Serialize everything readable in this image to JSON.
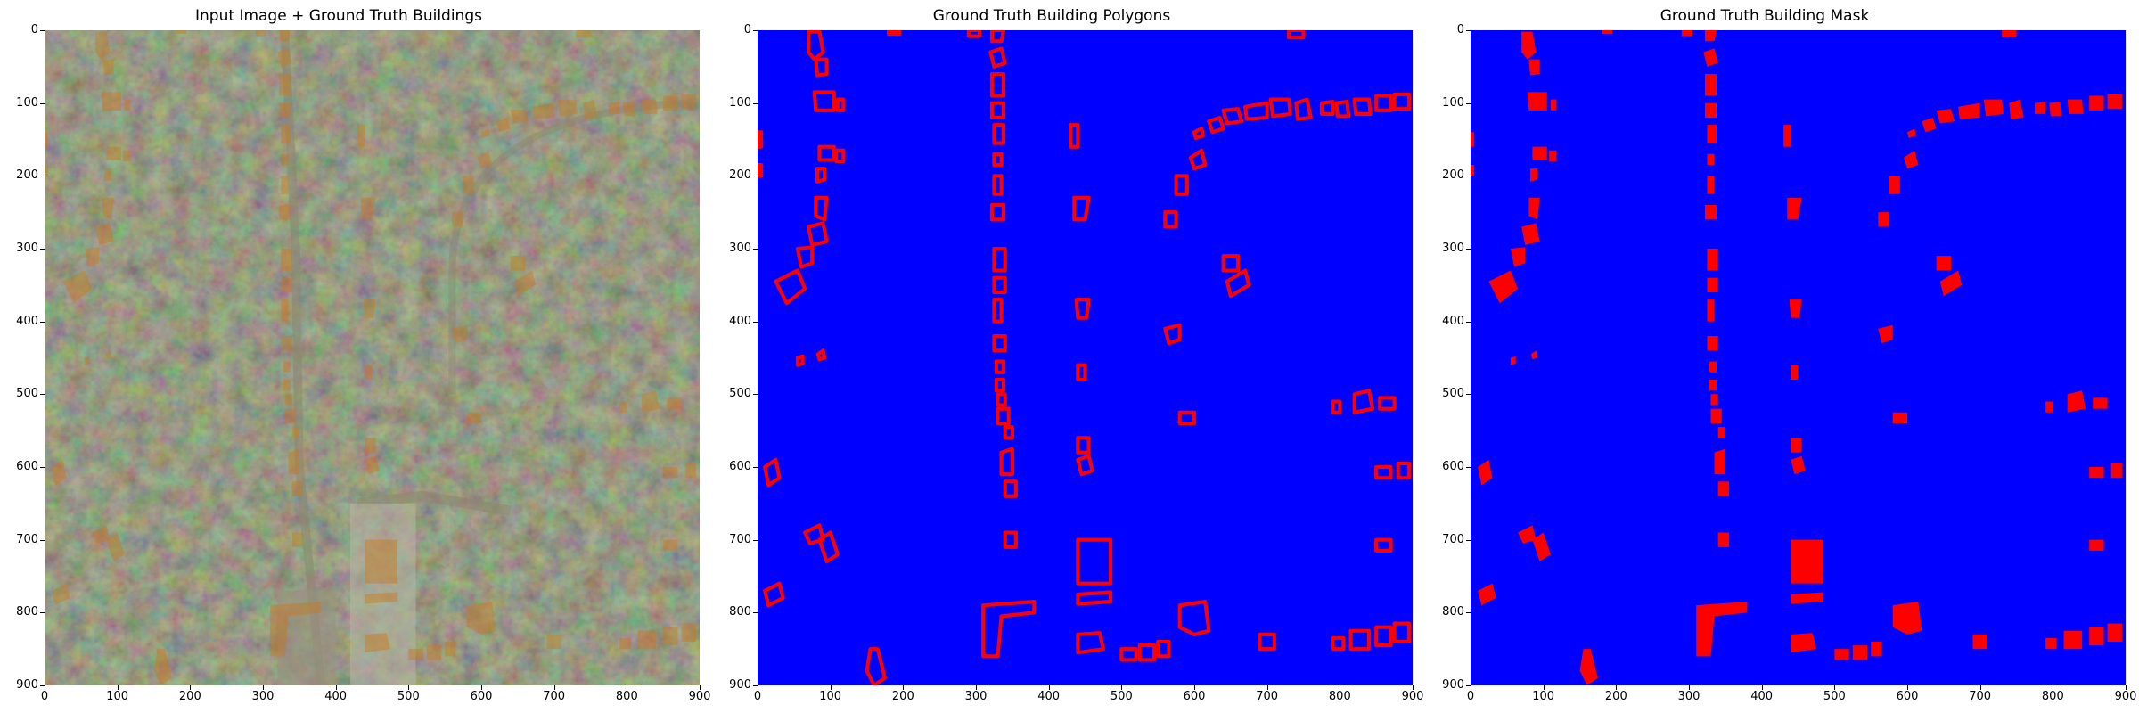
{
  "panels": [
    {
      "title": "Input Image + Ground Truth Buildings"
    },
    {
      "title": "Ground Truth Building Polygons"
    },
    {
      "title": "Ground Truth Building Mask"
    }
  ],
  "axes": {
    "x_ticks": [
      "0",
      "100",
      "200",
      "300",
      "400",
      "500",
      "600",
      "700",
      "800",
      "900"
    ],
    "y_ticks": [
      "0",
      "100",
      "200",
      "300",
      "400",
      "500",
      "600",
      "700",
      "800",
      "900"
    ],
    "xlim": [
      0,
      900
    ],
    "ylim": [
      900,
      0
    ]
  },
  "colors": {
    "background_blue": "#0000ff",
    "building_red": "#ff0000",
    "overlay_orange": "#c8781e",
    "aerial_base": "#2d3a26"
  },
  "buildings": [
    [
      [
        70,
        2
      ],
      [
        85,
        2
      ],
      [
        90,
        30
      ],
      [
        78,
        40
      ],
      [
        70,
        30
      ]
    ],
    [
      [
        80,
        40
      ],
      [
        95,
        40
      ],
      [
        95,
        60
      ],
      [
        82,
        62
      ]
    ],
    [
      [
        78,
        85
      ],
      [
        105,
        85
      ],
      [
        105,
        110
      ],
      [
        80,
        110
      ]
    ],
    [
      [
        110,
        95
      ],
      [
        118,
        95
      ],
      [
        118,
        110
      ],
      [
        110,
        110
      ]
    ],
    [
      [
        85,
        160
      ],
      [
        105,
        160
      ],
      [
        105,
        178
      ],
      [
        85,
        178
      ]
    ],
    [
      [
        108,
        165
      ],
      [
        118,
        165
      ],
      [
        118,
        180
      ],
      [
        108,
        180
      ]
    ],
    [
      [
        82,
        190
      ],
      [
        92,
        190
      ],
      [
        92,
        205
      ],
      [
        82,
        208
      ]
    ],
    [
      [
        80,
        230
      ],
      [
        95,
        230
      ],
      [
        92,
        260
      ],
      [
        80,
        255
      ]
    ],
    [
      [
        70,
        270
      ],
      [
        90,
        265
      ],
      [
        95,
        290
      ],
      [
        75,
        295
      ]
    ],
    [
      [
        55,
        300
      ],
      [
        75,
        298
      ],
      [
        75,
        320
      ],
      [
        60,
        325
      ]
    ],
    [
      [
        25,
        345
      ],
      [
        55,
        330
      ],
      [
        65,
        355
      ],
      [
        40,
        375
      ]
    ],
    [
      [
        0,
        140
      ],
      [
        5,
        140
      ],
      [
        5,
        160
      ],
      [
        0,
        160
      ]
    ],
    [
      [
        0,
        185
      ],
      [
        5,
        185
      ],
      [
        5,
        200
      ],
      [
        0,
        200
      ]
    ],
    [
      [
        10,
        600
      ],
      [
        25,
        590
      ],
      [
        30,
        615
      ],
      [
        15,
        625
      ]
    ],
    [
      [
        65,
        690
      ],
      [
        85,
        680
      ],
      [
        90,
        700
      ],
      [
        72,
        705
      ]
    ],
    [
      [
        85,
        700
      ],
      [
        100,
        690
      ],
      [
        110,
        720
      ],
      [
        95,
        730
      ]
    ],
    [
      [
        10,
        770
      ],
      [
        30,
        760
      ],
      [
        35,
        780
      ],
      [
        15,
        790
      ]
    ],
    [
      [
        55,
        450
      ],
      [
        62,
        448
      ],
      [
        62,
        458
      ],
      [
        55,
        460
      ]
    ],
    [
      [
        83,
        445
      ],
      [
        90,
        440
      ],
      [
        92,
        450
      ],
      [
        85,
        452
      ]
    ],
    [
      [
        155,
        850
      ],
      [
        165,
        850
      ],
      [
        175,
        890
      ],
      [
        160,
        900
      ],
      [
        150,
        880
      ]
    ],
    [
      [
        310,
        790
      ],
      [
        380,
        785
      ],
      [
        380,
        800
      ],
      [
        335,
        805
      ],
      [
        330,
        860
      ],
      [
        310,
        860
      ]
    ],
    [
      [
        322,
        0
      ],
      [
        338,
        0
      ],
      [
        335,
        15
      ],
      [
        322,
        15
      ]
    ],
    [
      [
        320,
        30
      ],
      [
        335,
        25
      ],
      [
        340,
        45
      ],
      [
        325,
        50
      ]
    ],
    [
      [
        322,
        60
      ],
      [
        338,
        60
      ],
      [
        338,
        90
      ],
      [
        322,
        90
      ]
    ],
    [
      [
        322,
        100
      ],
      [
        338,
        100
      ],
      [
        338,
        120
      ],
      [
        322,
        120
      ]
    ],
    [
      [
        325,
        130
      ],
      [
        338,
        130
      ],
      [
        338,
        155
      ],
      [
        325,
        155
      ]
    ],
    [
      [
        325,
        170
      ],
      [
        335,
        170
      ],
      [
        335,
        185
      ],
      [
        325,
        185
      ]
    ],
    [
      [
        325,
        200
      ],
      [
        335,
        200
      ],
      [
        335,
        225
      ],
      [
        325,
        225
      ]
    ],
    [
      [
        322,
        240
      ],
      [
        338,
        240
      ],
      [
        338,
        260
      ],
      [
        322,
        260
      ]
    ],
    [
      [
        325,
        300
      ],
      [
        340,
        300
      ],
      [
        340,
        330
      ],
      [
        325,
        330
      ]
    ],
    [
      [
        325,
        340
      ],
      [
        340,
        340
      ],
      [
        340,
        360
      ],
      [
        325,
        360
      ]
    ],
    [
      [
        325,
        370
      ],
      [
        335,
        370
      ],
      [
        335,
        400
      ],
      [
        325,
        400
      ]
    ],
    [
      [
        325,
        420
      ],
      [
        340,
        420
      ],
      [
        340,
        440
      ],
      [
        325,
        440
      ]
    ],
    [
      [
        328,
        455
      ],
      [
        338,
        455
      ],
      [
        338,
        470
      ],
      [
        328,
        470
      ]
    ],
    [
      [
        328,
        480
      ],
      [
        338,
        480
      ],
      [
        338,
        495
      ],
      [
        328,
        495
      ]
    ],
    [
      [
        330,
        500
      ],
      [
        340,
        500
      ],
      [
        340,
        515
      ],
      [
        330,
        515
      ]
    ],
    [
      [
        330,
        520
      ],
      [
        345,
        520
      ],
      [
        345,
        540
      ],
      [
        330,
        540
      ]
    ],
    [
      [
        340,
        545
      ],
      [
        350,
        545
      ],
      [
        350,
        560
      ],
      [
        340,
        560
      ]
    ],
    [
      [
        335,
        580
      ],
      [
        350,
        575
      ],
      [
        350,
        610
      ],
      [
        335,
        610
      ]
    ],
    [
      [
        340,
        620
      ],
      [
        355,
        620
      ],
      [
        355,
        640
      ],
      [
        340,
        640
      ]
    ],
    [
      [
        340,
        690
      ],
      [
        355,
        690
      ],
      [
        355,
        710
      ],
      [
        340,
        710
      ]
    ],
    [
      [
        430,
        130
      ],
      [
        440,
        130
      ],
      [
        440,
        160
      ],
      [
        430,
        160
      ]
    ],
    [
      [
        435,
        230
      ],
      [
        455,
        230
      ],
      [
        450,
        260
      ],
      [
        435,
        260
      ]
    ],
    [
      [
        438,
        370
      ],
      [
        455,
        370
      ],
      [
        452,
        395
      ],
      [
        440,
        395
      ]
    ],
    [
      [
        440,
        460
      ],
      [
        450,
        460
      ],
      [
        450,
        480
      ],
      [
        440,
        480
      ]
    ],
    [
      [
        440,
        560
      ],
      [
        455,
        560
      ],
      [
        455,
        580
      ],
      [
        440,
        580
      ]
    ],
    [
      [
        440,
        590
      ],
      [
        455,
        585
      ],
      [
        460,
        605
      ],
      [
        445,
        610
      ]
    ],
    [
      [
        440,
        700
      ],
      [
        485,
        700
      ],
      [
        485,
        760
      ],
      [
        440,
        760
      ]
    ],
    [
      [
        440,
        775
      ],
      [
        485,
        772
      ],
      [
        485,
        785
      ],
      [
        440,
        788
      ]
    ],
    [
      [
        440,
        830
      ],
      [
        470,
        828
      ],
      [
        475,
        850
      ],
      [
        440,
        855
      ]
    ],
    [
      [
        500,
        850
      ],
      [
        520,
        850
      ],
      [
        520,
        865
      ],
      [
        500,
        865
      ]
    ],
    [
      [
        525,
        845
      ],
      [
        545,
        845
      ],
      [
        545,
        865
      ],
      [
        525,
        865
      ]
    ],
    [
      [
        550,
        840
      ],
      [
        565,
        840
      ],
      [
        565,
        860
      ],
      [
        550,
        860
      ]
    ],
    [
      [
        560,
        410
      ],
      [
        580,
        405
      ],
      [
        580,
        425
      ],
      [
        565,
        430
      ]
    ],
    [
      [
        580,
        525
      ],
      [
        600,
        525
      ],
      [
        600,
        540
      ],
      [
        580,
        540
      ]
    ],
    [
      [
        580,
        790
      ],
      [
        615,
        785
      ],
      [
        620,
        825
      ],
      [
        600,
        830
      ],
      [
        580,
        820
      ]
    ],
    [
      [
        595,
        175
      ],
      [
        610,
        165
      ],
      [
        615,
        185
      ],
      [
        600,
        190
      ]
    ],
    [
      [
        575,
        200
      ],
      [
        590,
        200
      ],
      [
        590,
        225
      ],
      [
        575,
        225
      ]
    ],
    [
      [
        560,
        250
      ],
      [
        575,
        250
      ],
      [
        575,
        270
      ],
      [
        560,
        270
      ]
    ],
    [
      [
        600,
        140
      ],
      [
        610,
        135
      ],
      [
        612,
        145
      ],
      [
        602,
        148
      ]
    ],
    [
      [
        620,
        125
      ],
      [
        635,
        120
      ],
      [
        640,
        135
      ],
      [
        625,
        140
      ]
    ],
    [
      [
        640,
        110
      ],
      [
        660,
        108
      ],
      [
        665,
        125
      ],
      [
        645,
        128
      ]
    ],
    [
      [
        670,
        105
      ],
      [
        700,
        100
      ],
      [
        700,
        120
      ],
      [
        672,
        122
      ]
    ],
    [
      [
        705,
        95
      ],
      [
        730,
        95
      ],
      [
        732,
        115
      ],
      [
        708,
        118
      ]
    ],
    [
      [
        740,
        100
      ],
      [
        755,
        95
      ],
      [
        760,
        120
      ],
      [
        742,
        122
      ]
    ],
    [
      [
        775,
        100
      ],
      [
        790,
        98
      ],
      [
        790,
        115
      ],
      [
        775,
        115
      ]
    ],
    [
      [
        795,
        100
      ],
      [
        810,
        98
      ],
      [
        812,
        118
      ],
      [
        797,
        118
      ]
    ],
    [
      [
        820,
        95
      ],
      [
        840,
        95
      ],
      [
        842,
        115
      ],
      [
        822,
        115
      ]
    ],
    [
      [
        850,
        90
      ],
      [
        870,
        90
      ],
      [
        870,
        110
      ],
      [
        850,
        110
      ]
    ],
    [
      [
        875,
        88
      ],
      [
        895,
        88
      ],
      [
        895,
        108
      ],
      [
        875,
        108
      ]
    ],
    [
      [
        640,
        310
      ],
      [
        660,
        310
      ],
      [
        660,
        330
      ],
      [
        640,
        330
      ]
    ],
    [
      [
        645,
        345
      ],
      [
        670,
        330
      ],
      [
        675,
        350
      ],
      [
        650,
        365
      ]
    ],
    [
      [
        730,
        0
      ],
      [
        750,
        0
      ],
      [
        750,
        10
      ],
      [
        730,
        10
      ]
    ],
    [
      [
        790,
        510
      ],
      [
        800,
        510
      ],
      [
        800,
        525
      ],
      [
        790,
        525
      ]
    ],
    [
      [
        820,
        500
      ],
      [
        840,
        495
      ],
      [
        845,
        520
      ],
      [
        820,
        525
      ]
    ],
    [
      [
        855,
        505
      ],
      [
        875,
        505
      ],
      [
        875,
        520
      ],
      [
        855,
        520
      ]
    ],
    [
      [
        850,
        600
      ],
      [
        870,
        600
      ],
      [
        870,
        615
      ],
      [
        850,
        615
      ]
    ],
    [
      [
        880,
        595
      ],
      [
        895,
        595
      ],
      [
        895,
        615
      ],
      [
        880,
        615
      ]
    ],
    [
      [
        850,
        700
      ],
      [
        870,
        700
      ],
      [
        870,
        715
      ],
      [
        850,
        715
      ]
    ],
    [
      [
        690,
        830
      ],
      [
        710,
        830
      ],
      [
        710,
        850
      ],
      [
        690,
        850
      ]
    ],
    [
      [
        790,
        835
      ],
      [
        805,
        835
      ],
      [
        805,
        850
      ],
      [
        790,
        850
      ]
    ],
    [
      [
        815,
        825
      ],
      [
        840,
        825
      ],
      [
        840,
        850
      ],
      [
        815,
        850
      ]
    ],
    [
      [
        850,
        820
      ],
      [
        870,
        820
      ],
      [
        870,
        845
      ],
      [
        850,
        845
      ]
    ],
    [
      [
        875,
        815
      ],
      [
        895,
        815
      ],
      [
        895,
        840
      ],
      [
        875,
        840
      ]
    ],
    [
      [
        180,
        0
      ],
      [
        195,
        0
      ],
      [
        195,
        5
      ],
      [
        180,
        5
      ]
    ],
    [
      [
        290,
        0
      ],
      [
        305,
        0
      ],
      [
        305,
        8
      ],
      [
        290,
        8
      ]
    ]
  ]
}
